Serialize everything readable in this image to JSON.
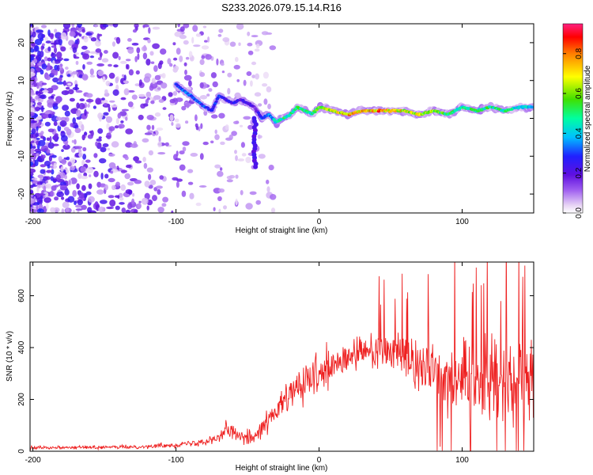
{
  "title": "S233.2026.079.15.14.R16",
  "chart_data": [
    {
      "type": "heatmap",
      "name": "spectrogram",
      "xlabel": "Height of straight line (km)",
      "ylabel": "Frequency (Hz)",
      "xlim": [
        -202,
        150
      ],
      "ylim": [
        -25,
        25
      ],
      "xticks": [
        -200,
        -100,
        0,
        100
      ],
      "yticks": [
        -20,
        -10,
        0,
        10,
        20
      ],
      "colorbar": {
        "label": "Normalized spectral amplitude",
        "range": [
          0,
          0.95
        ],
        "ticks": [
          0.0,
          0.2,
          0.4,
          0.6,
          0.8
        ],
        "colors": [
          "#ffffff",
          "#e8d5f5",
          "#a060f0",
          "#6010e0",
          "#2020ff",
          "#00c0ff",
          "#00ffa0",
          "#40e000",
          "#ffff00",
          "#ff8000",
          "#ff0000",
          "#ff2080"
        ]
      },
      "track": {
        "x": [
          -100,
          -90,
          -80,
          -75,
          -70,
          -65,
          -60,
          -55,
          -50,
          -45,
          -40,
          -35,
          -30,
          -25,
          -20,
          -15,
          -10,
          -5,
          0,
          10,
          20,
          30,
          40,
          50,
          60,
          70,
          80,
          90,
          100,
          110,
          120,
          130,
          140,
          150
        ],
        "y": [
          9,
          6,
          3,
          2,
          6,
          5,
          4,
          5,
          4,
          3,
          0,
          1,
          -1,
          0,
          1,
          3,
          2,
          1,
          3,
          2,
          1,
          2,
          2,
          2,
          2,
          1,
          2,
          1,
          3,
          2,
          3,
          2,
          3,
          3
        ],
        "amplitude": [
          0.35,
          0.4,
          0.35,
          0.3,
          0.35,
          0.3,
          0.3,
          0.25,
          0.3,
          0.2,
          0.35,
          0.4,
          0.5,
          0.6,
          0.55,
          0.6,
          0.55,
          0.6,
          0.7,
          0.75,
          0.85,
          0.9,
          0.9,
          0.85,
          0.8,
          0.75,
          0.7,
          0.6,
          0.55,
          0.6,
          0.6,
          0.55,
          0.5,
          0.5
        ]
      }
    },
    {
      "type": "line",
      "name": "snr",
      "xlabel": "Height of straight line (km)",
      "ylabel": "SNR (10 * v/v)",
      "xlim": [
        -202,
        150
      ],
      "ylim": [
        0,
        730
      ],
      "xticks": [
        -200,
        -100,
        0,
        100
      ],
      "yticks": [
        0,
        200,
        400,
        600
      ],
      "color": "#ee2020",
      "envelope": {
        "x": [
          -200,
          -150,
          -120,
          -100,
          -90,
          -80,
          -70,
          -65,
          -60,
          -50,
          -45,
          -40,
          -30,
          -20,
          -10,
          0,
          10,
          20,
          30,
          40,
          50,
          60,
          70,
          80,
          90,
          100,
          110,
          120,
          130,
          140,
          150
        ],
        "mean": [
          15,
          15,
          18,
          25,
          30,
          40,
          55,
          80,
          70,
          60,
          55,
          90,
          150,
          220,
          260,
          290,
          320,
          360,
          380,
          390,
          380,
          370,
          340,
          320,
          300,
          290,
          260,
          280,
          300,
          280,
          260
        ],
        "spread": [
          12,
          12,
          15,
          20,
          25,
          30,
          45,
          70,
          60,
          55,
          50,
          70,
          100,
          130,
          150,
          150,
          150,
          140,
          130,
          120,
          150,
          180,
          220,
          250,
          250,
          260,
          300,
          330,
          320,
          330,
          330
        ]
      }
    }
  ]
}
